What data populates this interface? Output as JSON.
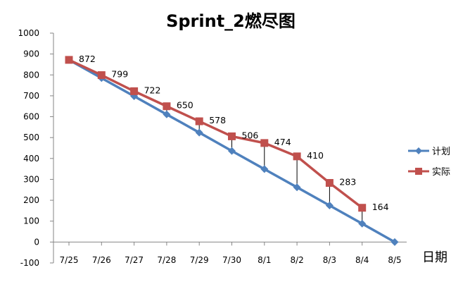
{
  "chart_data": {
    "type": "line",
    "title": "Sprint_2燃尽图",
    "xlabel": "日期",
    "ylabel": "",
    "categories": [
      "7/25",
      "7/26",
      "7/27",
      "7/28",
      "7/29",
      "7/30",
      "8/1",
      "8/2",
      "8/3",
      "8/4",
      "8/5"
    ],
    "ylim": [
      -100,
      1000
    ],
    "yticks": [
      1000,
      900,
      800,
      700,
      600,
      500,
      400,
      300,
      200,
      100,
      0,
      -100
    ],
    "grid": false,
    "legend_position": "right",
    "series": [
      {
        "name": "计划",
        "color": "#4F81BD",
        "marker": "diamond",
        "values": [
          872,
          785,
          698,
          611,
          524,
          436,
          349,
          262,
          175,
          88,
          0
        ]
      },
      {
        "name": "实际",
        "color": "#C0504D",
        "marker": "square",
        "values": [
          872,
          799,
          722,
          650,
          578,
          506,
          474,
          410,
          283,
          164,
          null
        ],
        "data_labels": [
          "872",
          "799",
          "722",
          "650",
          "578",
          "506",
          "474",
          "410",
          "283",
          "164"
        ]
      }
    ],
    "drop_lines": true
  }
}
